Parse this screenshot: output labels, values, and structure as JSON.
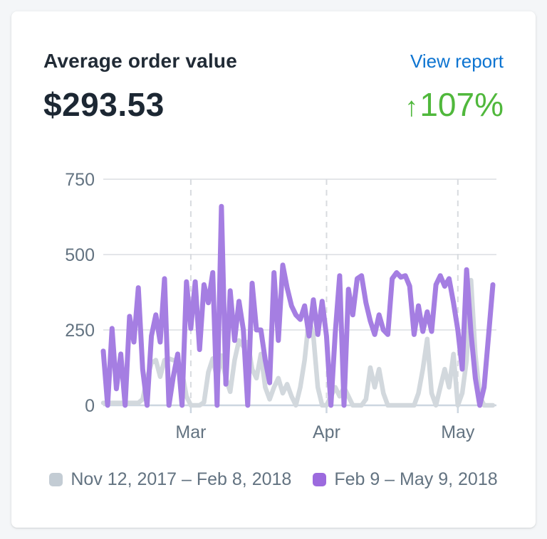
{
  "card": {
    "title": "Average order value",
    "view_report_label": "View report",
    "value": "$293.53",
    "delta": {
      "arrow": "↑",
      "text": "107%",
      "direction": "up"
    }
  },
  "colors": {
    "heading": "#212b36",
    "muted_text": "#637381",
    "link_blue": "#0d74d1",
    "success_green": "#50b83c",
    "gridline": "#e4e6e9",
    "axis_line": "#ccd6e0",
    "dashed_gridline": "#d8dbdf",
    "purple_swatch": "#9c6ade",
    "purple_line": "#a57ee2",
    "gray_swatch": "#c3ccd4",
    "gray_line": "#d2d8dd"
  },
  "chart_data": {
    "type": "line",
    "title": "Average order value, daily, current vs previous period",
    "ylabel": "",
    "xlabel": "",
    "ylim": [
      0,
      750
    ],
    "y_ticks": [
      0,
      250,
      500,
      750
    ],
    "x_ticks": [
      {
        "label": "Mar",
        "day_index": 20
      },
      {
        "label": "Apr",
        "day_index": 51
      },
      {
        "label": "May",
        "day_index": 81
      }
    ],
    "grid": true,
    "legend_position": "bottom",
    "series": [
      {
        "name": "Nov 12, 2017 – Feb 8, 2018",
        "swatch_color": "#c3ccd4",
        "line_color": "#d2d8dd",
        "values": [
          8,
          8,
          8,
          8,
          8,
          8,
          8,
          8,
          8,
          20,
          90,
          140,
          150,
          95,
          150,
          155,
          150,
          150,
          110,
          30,
          0,
          0,
          0,
          10,
          110,
          155,
          90,
          165,
          90,
          45,
          150,
          215,
          195,
          210,
          120,
          90,
          170,
          60,
          20,
          60,
          90,
          40,
          70,
          30,
          0,
          60,
          150,
          290,
          230,
          60,
          0,
          0,
          30,
          60,
          30,
          60,
          30,
          0,
          0,
          0,
          20,
          125,
          60,
          120,
          40,
          0,
          0,
          0,
          0,
          0,
          0,
          0,
          40,
          120,
          220,
          40,
          0,
          60,
          120,
          60,
          170,
          0,
          40,
          150,
          415,
          170,
          30,
          0,
          0,
          0
        ]
      },
      {
        "name": "Feb 9 – May 9, 2018",
        "swatch_color": "#9c6ade",
        "line_color": "#a57ee2",
        "values": [
          180,
          0,
          255,
          55,
          170,
          0,
          295,
          210,
          390,
          120,
          0,
          230,
          300,
          210,
          420,
          0,
          95,
          170,
          0,
          410,
          255,
          410,
          185,
          400,
          340,
          440,
          0,
          660,
          70,
          380,
          215,
          345,
          250,
          0,
          405,
          250,
          250,
          150,
          75,
          440,
          215,
          465,
          390,
          330,
          300,
          285,
          330,
          230,
          350,
          235,
          345,
          230,
          0,
          240,
          430,
          0,
          385,
          300,
          420,
          430,
          340,
          280,
          235,
          300,
          250,
          235,
          420,
          440,
          425,
          430,
          395,
          235,
          330,
          245,
          310,
          245,
          400,
          430,
          395,
          420,
          340,
          250,
          120,
          450,
          240,
          90,
          0,
          60,
          230,
          400
        ]
      }
    ]
  }
}
